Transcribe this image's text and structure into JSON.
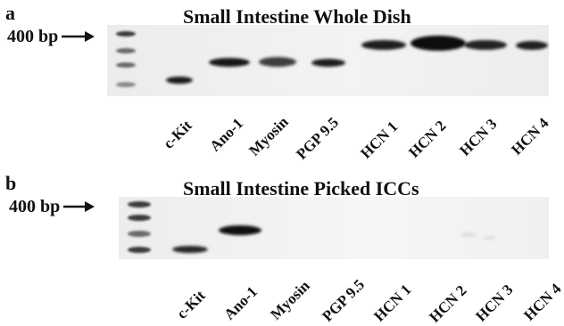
{
  "panel_a": {
    "letter": "a",
    "title": "Small Intestine Whole Dish",
    "marker_label": "400 bp",
    "lanes": [
      "c-Kit",
      "Ano-1",
      "Myosin",
      "PGP 9.5",
      "HCN 1",
      "HCN 2",
      "HCN 3",
      "HCN 4"
    ]
  },
  "panel_b": {
    "letter": "b",
    "title": "Small Intestine Picked ICCs",
    "marker_label": "400 bp",
    "lanes": [
      "c-Kit",
      "Ano-1",
      "Myosin",
      "PGP 9.5",
      "HCN 1",
      "HCN 2",
      "HCN 3",
      "HCN 4"
    ]
  }
}
